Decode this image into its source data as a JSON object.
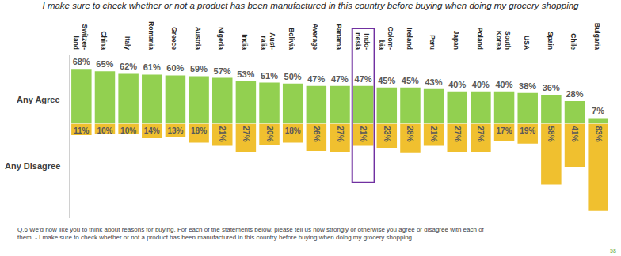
{
  "chart_data": {
    "type": "bar",
    "title": "I make sure to check whether or not a product has been manufactured in this country before buying when doing my grocery shopping",
    "categories": [
      "Switzer-land",
      "China",
      "Italy",
      "Romania",
      "Greece",
      "Austria",
      "Nigeria",
      "India",
      "Aust-ralia",
      "Bolivia",
      "Average",
      "Panama",
      "Indo-nesia",
      "Colom-bia",
      "Ireland",
      "Peru",
      "Japan",
      "Poland",
      "South Korea",
      "USA",
      "Spain",
      "Chile",
      "Bulgaria"
    ],
    "series": [
      {
        "name": "Any Agree",
        "color": "#92d050",
        "values": [
          68,
          65,
          62,
          61,
          60,
          59,
          57,
          53,
          51,
          50,
          47,
          47,
          47,
          45,
          45,
          43,
          40,
          40,
          40,
          38,
          36,
          28,
          7
        ],
        "value_labels": [
          "68%",
          "65%",
          "62%",
          "61%",
          "60%",
          "59%",
          "57%",
          "53%",
          "51%",
          "50%",
          "47%",
          "47%",
          "47%",
          "45%",
          "45%",
          "43%",
          "40%",
          "40%",
          "40%",
          "38%",
          "36%",
          "28%",
          "7%"
        ]
      },
      {
        "name": "Any Disagree",
        "color": "#f0c02f",
        "axis": "y2",
        "values": [
          11,
          10,
          10,
          14,
          13,
          18,
          21,
          27,
          20,
          18,
          26,
          27,
          21,
          23,
          28,
          21,
          27,
          27,
          17,
          19,
          58,
          41,
          83
        ],
        "value_labels": [
          "11%",
          "10%",
          "10%",
          "14%",
          "13%",
          "18%",
          "21%",
          "27%",
          "20%",
          "18%",
          "26%",
          "27%",
          "21%",
          "23%",
          "28%",
          "21%",
          "27%",
          "27%",
          "17%",
          "19%",
          "58%",
          "41%",
          "83%"
        ]
      }
    ],
    "ylim": [
      0,
      85
    ],
    "y2lim": [
      90,
      0
    ],
    "tick_labels": "x",
    "data_labels": true,
    "grid": false,
    "footnote": [
      "Q.6 We'd now like you to think about reasons for buying. For each of the statements below, please tell us how strongly or otherwise you agree or disagree with each of",
      "them. - I make sure to check whether or not a product has been manufactured in this country before buying when doing my grocery shopping"
    ],
    "page_number": "58"
  }
}
